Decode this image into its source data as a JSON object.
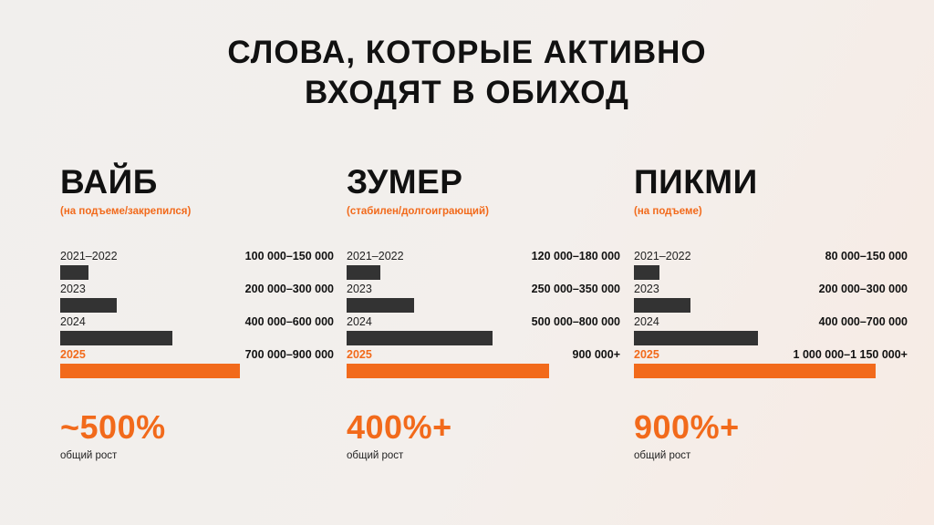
{
  "title_lines": [
    "СЛОВА, КОТОРЫЕ АКТИВНО",
    "ВХОДЯТ В ОБИХОД"
  ],
  "colors": {
    "accent": "#f26a1b",
    "bar": "#333333",
    "text": "#111111"
  },
  "growth_label": "общий рост",
  "chart_data": [
    {
      "type": "bar",
      "orientation": "horizontal",
      "title": "ВАЙБ",
      "subtitle": "(на подъеме/закрепился)",
      "categories": [
        "2021–2022",
        "2023",
        "2024",
        "2025"
      ],
      "range_labels": [
        "100 000–150 000",
        "200 000–300 000",
        "400 000–600 000",
        "700 000–900 000"
      ],
      "values": [
        125000,
        250000,
        500000,
        800000
      ],
      "highlight_index": 3,
      "growth": "~500%"
    },
    {
      "type": "bar",
      "orientation": "horizontal",
      "title": "ЗУМЕР",
      "subtitle": "(стабилен/долгоиграющий)",
      "categories": [
        "2021–2022",
        "2023",
        "2024",
        "2025"
      ],
      "range_labels": [
        "120 000–180 000",
        "250 000–350 000",
        "500 000–800 000",
        "900 000+"
      ],
      "values": [
        150000,
        300000,
        650000,
        900000
      ],
      "highlight_index": 3,
      "growth": "400%+"
    },
    {
      "type": "bar",
      "orientation": "horizontal",
      "title": "ПИКМИ",
      "subtitle": "(на подъеме)",
      "categories": [
        "2021–2022",
        "2023",
        "2024",
        "2025"
      ],
      "range_labels": [
        "80 000–150 000",
        "200 000–300 000",
        "400 000–700 000",
        "1 000 000–1 150 000+"
      ],
      "values": [
        115000,
        250000,
        550000,
        1075000
      ],
      "highlight_index": 3,
      "growth": "900%+"
    }
  ]
}
